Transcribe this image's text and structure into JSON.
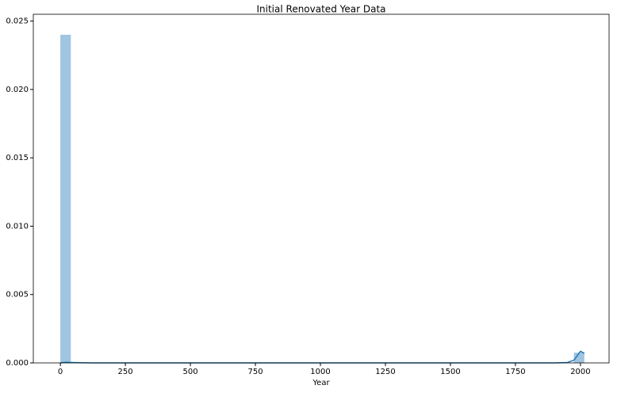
{
  "chart_data": {
    "type": "histogram",
    "title": "Initial Renovated Year Data",
    "x_label": "Year",
    "bins": [
      0,
      40.3,
      80.6,
      120.9,
      161.2,
      201.5,
      241.8,
      282.1,
      322.4,
      362.7,
      403,
      443.3,
      483.6,
      523.9,
      564.2,
      604.5,
      644.8,
      685.1,
      725.4,
      765.7,
      806,
      846.3,
      886.6,
      926.9,
      967.2,
      1007.5,
      1047.8,
      1088.1,
      1128.4,
      1168.7,
      1209,
      1249.3,
      1289.6,
      1329.9,
      1370.2,
      1410.5,
      1450.8,
      1491.1,
      1531.4,
      1571.7,
      1612,
      1652.3,
      1692.6,
      1732.9,
      1773.2,
      1813.5,
      1853.8,
      1894.1,
      1934.4,
      1974.7,
      2015
    ],
    "values": [
      0.024,
      0,
      0,
      0,
      0,
      0,
      0,
      0,
      0,
      0,
      0,
      0,
      0,
      0,
      0,
      0,
      0,
      0,
      0,
      0,
      0,
      0,
      0,
      0,
      0,
      0,
      0,
      0,
      0,
      0,
      0,
      0,
      0,
      0,
      0,
      0,
      0,
      0,
      0,
      0,
      0,
      0,
      0,
      0,
      0,
      0,
      0,
      0,
      0,
      0.00075
    ],
    "color": "#9fc5e1",
    "kde": {
      "x": [
        0,
        20,
        60,
        120,
        300,
        600,
        900,
        1200,
        1500,
        1800,
        1900,
        1950,
        1975,
        2000,
        2015
      ],
      "values": [
        0,
        4e-05,
        2e-05,
        0,
        0,
        0,
        0,
        0,
        0,
        0,
        0,
        3e-05,
        0.0002,
        0.00085,
        0.0007
      ],
      "color": "#1f77b4"
    },
    "xlim": [
      -104,
      2110
    ],
    "ylim": [
      0,
      0.0255
    ],
    "xticks": [
      0,
      250,
      500,
      750,
      1000,
      1250,
      1500,
      1750,
      2000
    ],
    "yticks": [
      {
        "value": 0,
        "label": "0.000"
      },
      {
        "value": 0.005,
        "label": "0.005"
      },
      {
        "value": 0.01,
        "label": "0.010"
      },
      {
        "value": 0.015,
        "label": "0.015"
      },
      {
        "value": 0.02,
        "label": "0.020"
      },
      {
        "value": 0.025,
        "label": "0.025"
      }
    ],
    "grid": false
  }
}
